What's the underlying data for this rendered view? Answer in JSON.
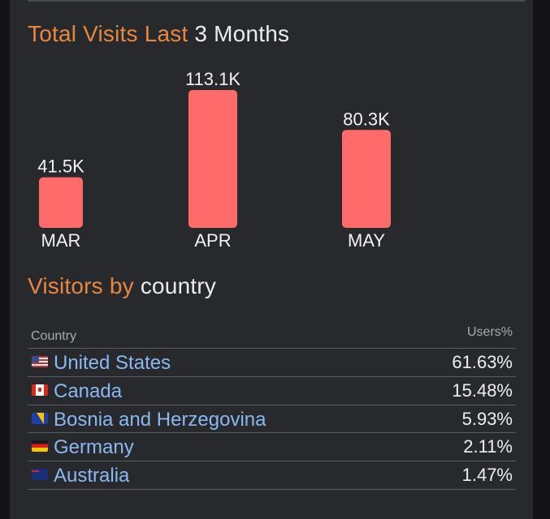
{
  "visits": {
    "title_accent": "Total Visits Last",
    "title_white": "3 Months"
  },
  "chart_data": {
    "type": "bar",
    "categories": [
      "MAR",
      "APR",
      "MAY"
    ],
    "values": [
      41.5,
      113.1,
      80.3
    ],
    "value_labels": [
      "41.5K",
      "113.1K",
      "80.3K"
    ],
    "unit": "K",
    "ylim": [
      0,
      113.1
    ],
    "bar_color": "#ff6b6b",
    "title": "Total Visits Last 3 Months",
    "xlabel": "",
    "ylabel": "",
    "grid": false
  },
  "visitors": {
    "title_accent": "Visitors by",
    "title_white": "country",
    "columns": {
      "country": "Country",
      "users": "Users%"
    },
    "rows": [
      {
        "flag": "flag-us",
        "country": "United States",
        "pct": "61.63%"
      },
      {
        "flag": "flag-ca",
        "country": "Canada",
        "pct": "15.48%"
      },
      {
        "flag": "flag-ba",
        "country": "Bosnia and Herzegovina",
        "pct": "5.93%"
      },
      {
        "flag": "flag-de",
        "country": "Germany",
        "pct": "2.11%"
      },
      {
        "flag": "flag-au",
        "country": "Australia",
        "pct": "1.47%"
      }
    ]
  },
  "colors": {
    "accent": "#e8873f",
    "link": "#8ab8f0",
    "panel": "#28292d"
  }
}
